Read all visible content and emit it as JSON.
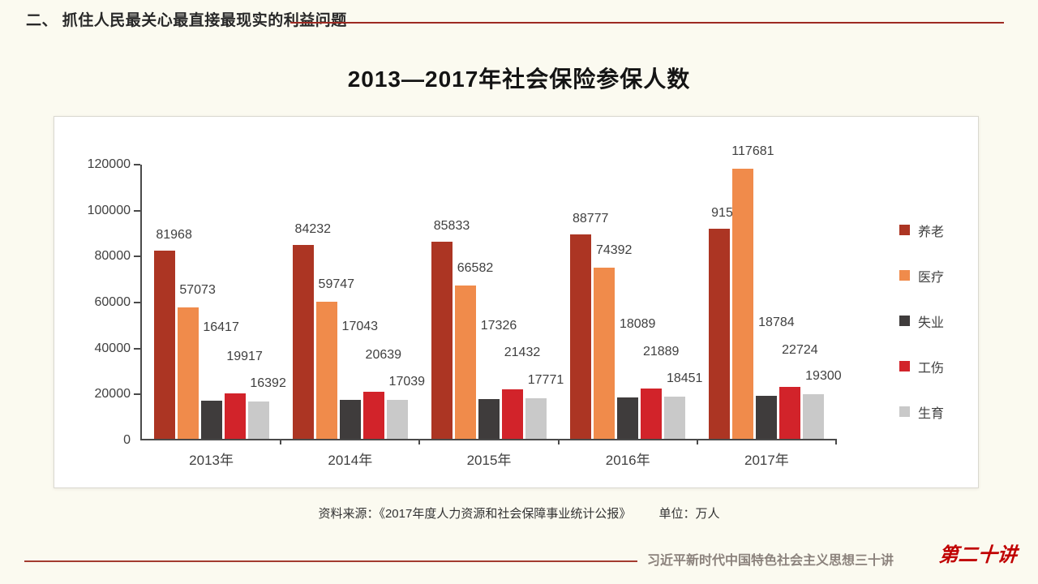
{
  "header": {
    "section_title": "二、 抓住人民最关心最直接最现实的利益问题"
  },
  "chart_data": {
    "type": "bar",
    "title": "2013—2017年社会保险参保人数",
    "categories": [
      "2013年",
      "2014年",
      "2015年",
      "2016年",
      "2017年"
    ],
    "series": [
      {
        "name": "养老",
        "color": "#AC3523",
        "values": [
          81968,
          84232,
          85833,
          88777,
          91548
        ]
      },
      {
        "name": "医疗",
        "color": "#F08B4B",
        "values": [
          57073,
          59747,
          66582,
          74392,
          117681
        ]
      },
      {
        "name": "失业",
        "color": "#3F3C3C",
        "values": [
          16417,
          17043,
          17326,
          18089,
          18784
        ]
      },
      {
        "name": "工伤",
        "color": "#D2232A",
        "values": [
          19917,
          20639,
          21432,
          21889,
          22724
        ]
      },
      {
        "name": "生育",
        "color": "#C9C9C9",
        "values": [
          16392,
          17039,
          17771,
          18451,
          19300
        ]
      }
    ],
    "y_axis": {
      "min": 0,
      "max": 120000,
      "step": 20000
    },
    "ylabel": "",
    "xlabel": "",
    "unit": "万人",
    "grid": false,
    "data_labels": true,
    "legend_position": "right"
  },
  "source": {
    "prefix": "资料来源：《2017年度人力资源和社会保障事业统计公报》",
    "unit": "单位：万人"
  },
  "footer": {
    "book_title": "习近平新时代中国特色社会主义思想三十讲",
    "lecture_badge": "第二十讲"
  },
  "colors": {
    "slide_background": "#FBFAF0",
    "header_rule": "#9E2A22",
    "axis": "#4A4A4A",
    "footer_rule": "#A33B30",
    "badge_red": "#C00000"
  }
}
